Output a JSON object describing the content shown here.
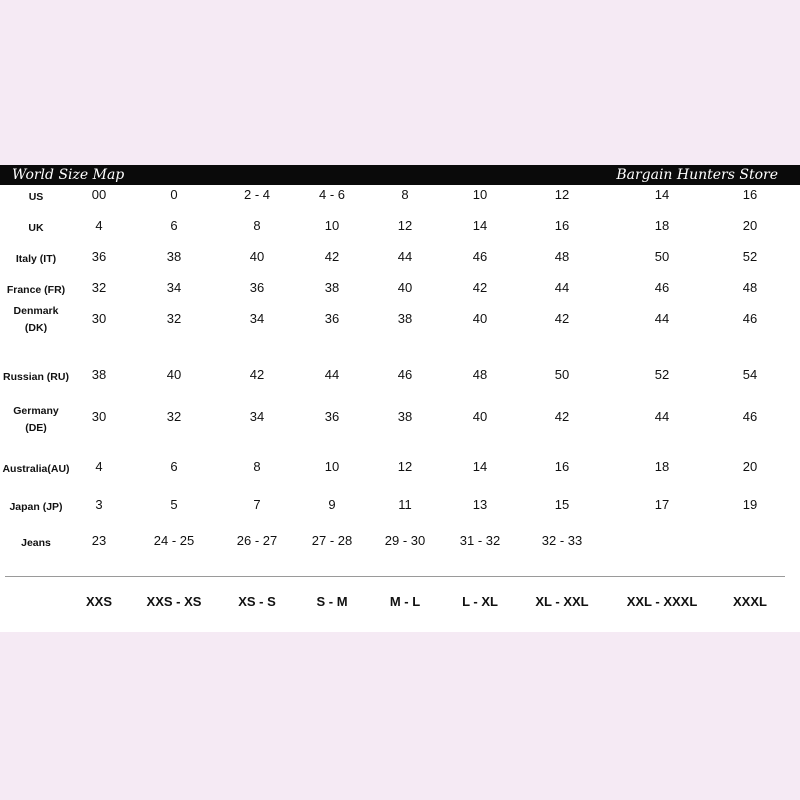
{
  "header": {
    "title": "World Size Map",
    "store": "Bargain Hunters Store"
  },
  "rows": [
    {
      "label": "US",
      "values": [
        "00",
        "0",
        "2 - 4",
        "4 - 6",
        "8",
        "10",
        "12",
        "14",
        "16"
      ]
    },
    {
      "label": "UK",
      "values": [
        "4",
        "6",
        "8",
        "10",
        "12",
        "14",
        "16",
        "18",
        "20"
      ]
    },
    {
      "label": "Italy (IT)",
      "values": [
        "36",
        "38",
        "40",
        "42",
        "44",
        "46",
        "48",
        "50",
        "52"
      ]
    },
    {
      "label": "France (FR)",
      "values": [
        "32",
        "34",
        "36",
        "38",
        "40",
        "42",
        "44",
        "46",
        "48"
      ]
    },
    {
      "label": "Denmark\n(DK)",
      "values": [
        "30",
        "32",
        "34",
        "36",
        "38",
        "40",
        "42",
        "44",
        "46"
      ]
    },
    {
      "label": "Russian (RU)",
      "values": [
        "38",
        "40",
        "42",
        "44",
        "46",
        "48",
        "50",
        "52",
        "54"
      ]
    },
    {
      "label": "Germany\n(DE)",
      "values": [
        "30",
        "32",
        "34",
        "36",
        "38",
        "40",
        "42",
        "44",
        "46"
      ]
    },
    {
      "label": "Australia(AU)",
      "values": [
        "4",
        "6",
        "8",
        "10",
        "12",
        "14",
        "16",
        "18",
        "20"
      ]
    },
    {
      "label": "Japan (JP)",
      "values": [
        "3",
        "5",
        "7",
        "9",
        "11",
        "13",
        "15",
        "17",
        "19"
      ]
    },
    {
      "label": "Jeans",
      "values": [
        "23",
        "24 - 25",
        "26 - 27",
        "27 - 28",
        "29 - 30",
        "31 - 32",
        "32 - 33",
        "",
        ""
      ]
    }
  ],
  "sizes": [
    "XXS",
    "XXS - XS",
    "XS - S",
    "S - M",
    "M - L",
    "L - XL",
    "XL - XXL",
    "XXL - XXXL",
    "XXXL"
  ]
}
